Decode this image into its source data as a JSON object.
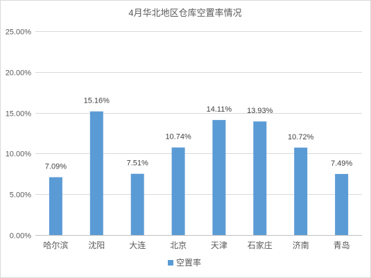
{
  "chart_data": {
    "type": "bar",
    "title": "4月华北地区仓库空置率情况",
    "categories": [
      "哈尔滨",
      "沈阳",
      "大连",
      "北京",
      "天津",
      "石家庄",
      "济南",
      "青岛"
    ],
    "series": [
      {
        "name": "空置率",
        "values": [
          7.09,
          15.16,
          7.51,
          10.74,
          14.11,
          13.93,
          10.72,
          7.49
        ],
        "data_labels": [
          "7.09%",
          "15.16%",
          "7.51%",
          "10.74%",
          "14.11%",
          "13.93%",
          "10.72%",
          "7.49%"
        ]
      }
    ],
    "ylim": [
      0,
      25
    ],
    "yticks": [
      0,
      5,
      10,
      15,
      20,
      25
    ],
    "ytick_labels": [
      "0.00%",
      "5.00%",
      "10.00%",
      "15.00%",
      "20.00%",
      "25.00%"
    ],
    "grid": true,
    "legend_position": "bottom",
    "bar_color": "#5b9bd5"
  }
}
